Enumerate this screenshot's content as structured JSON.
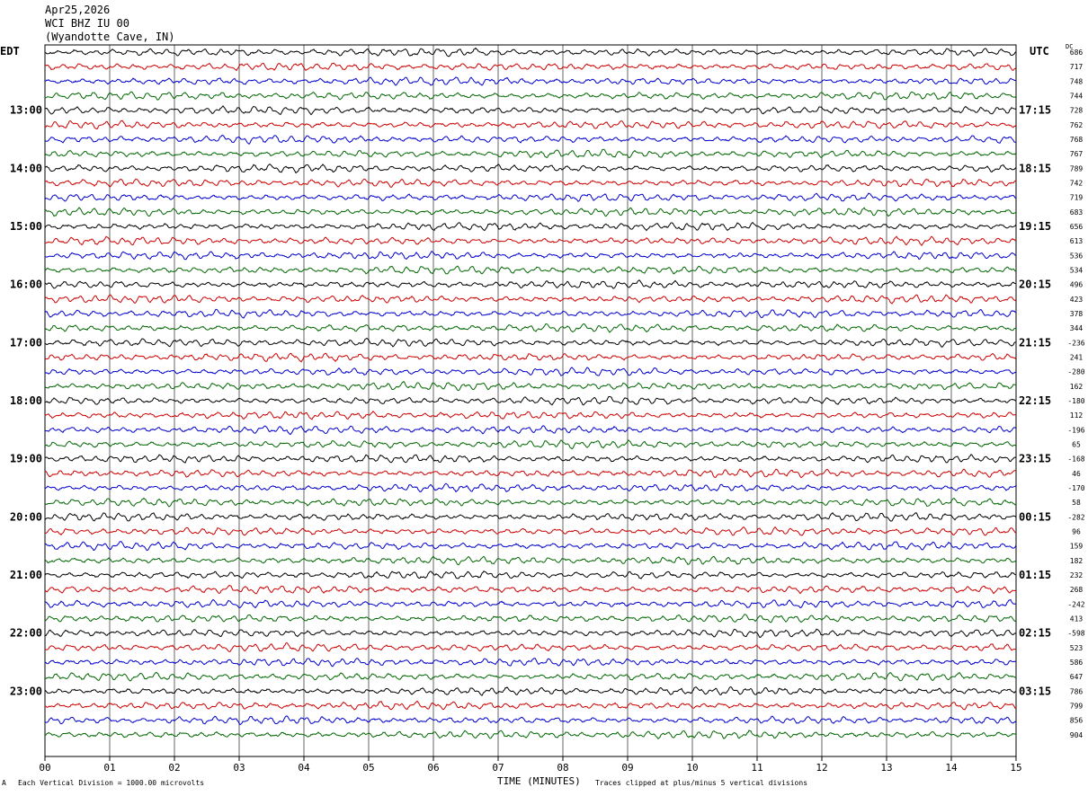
{
  "header": {
    "date": "Apr25,2026",
    "station": "WCI BHZ IU 00",
    "location": "(Wyandotte Cave, IN)"
  },
  "left_tz": "EDT",
  "right_tz": "UTC",
  "dc_label": "DC",
  "footer": {
    "scale_note": "Each Vertical Division = 1000.00 microvolts",
    "xlabel": "TIME (MINUTES)",
    "clip_note": "Traces clipped at plus/minus 5 vertical divisions",
    "corner_mark": "A"
  },
  "colors": {
    "trace_cycle": [
      "#000000",
      "#cc0000",
      "#0000cc",
      "#006600"
    ],
    "grid": "#000000"
  },
  "chart_data": {
    "type": "helicorder",
    "x": {
      "label": "TIME (MINUTES)",
      "range": [
        0,
        15
      ],
      "ticks": [
        "00",
        "01",
        "02",
        "03",
        "04",
        "05",
        "06",
        "07",
        "08",
        "09",
        "10",
        "11",
        "12",
        "13",
        "14",
        "15"
      ]
    },
    "rows_per_hour": 4,
    "left_hour_labels": [
      "13:00",
      "14:00",
      "15:00",
      "16:00",
      "17:00",
      "18:00",
      "19:00",
      "20:00",
      "21:00",
      "22:00",
      "23:00"
    ],
    "right_hour_labels": [
      "17:15",
      "18:15",
      "19:15",
      "20:15",
      "21:15",
      "22:15",
      "23:15",
      "00:15",
      "01:15",
      "02:15",
      "03:15"
    ],
    "dc_offsets": [
      "686",
      "717",
      "748",
      "744",
      "728",
      "762",
      "768",
      "767",
      "789",
      "742",
      "719",
      "683",
      "656",
      "613",
      "536",
      "534",
      "496",
      "423",
      "378",
      "344",
      "-236",
      "241",
      "-280",
      "162",
      "-180",
      "112",
      "-196",
      "65",
      "-168",
      "46",
      "-170",
      "58",
      "-282",
      "96",
      "159",
      "182",
      "232",
      "268",
      "-242",
      "413",
      "-598",
      "523",
      "586",
      "647",
      "786",
      "799",
      "856",
      "904"
    ]
  }
}
